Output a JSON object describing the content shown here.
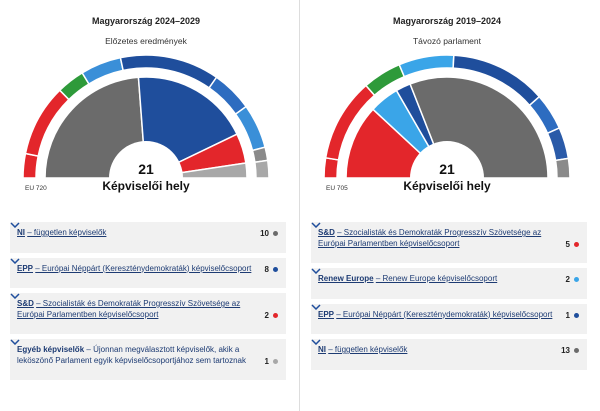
{
  "chart_data": [
    {
      "type": "parliament",
      "title": "Magyarország 2024–2029",
      "subtitle": "Előzetes eredmények",
      "total": 21,
      "total_label": "Képviselői hely",
      "eu_label": "EU 720",
      "categories": [
        "NI",
        "EPP",
        "S&D",
        "Egyéb képviselők"
      ],
      "descriptions": [
        "– független képviselők",
        "– Európai Néppárt (Kereszténydemokraták) képviselőcsoport",
        "– Szocialisták és Demokraták Progresszív Szövetsége az Európai Parlamentben képviselőcsoport",
        "– Újonnan megválasztott képviselők, akik a leköszönő Parlament egyik képviselőcsoportjához sem tartoznak"
      ],
      "values": [
        10,
        8,
        2,
        1
      ],
      "colors": [
        "#6b6b6b",
        "#1f4e9c",
        "#e3262b",
        "#a8a8a8"
      ],
      "underlined": [
        true,
        true,
        true,
        false
      ],
      "eu_series": {
        "values": [
          46,
          136,
          53,
          77,
          188,
          78,
          84,
          25,
          33
        ],
        "colors": [
          "#e3262b",
          "#e3262b",
          "#2e9a3a",
          "#3a8fd8",
          "#1f4e9c",
          "#2d6cc0",
          "#3a8fd8",
          "#8a8a8a",
          "#a8a8a8"
        ]
      }
    },
    {
      "type": "parliament",
      "title": "Magyarország 2019–2024",
      "subtitle": "Távozó parlament",
      "total": 21,
      "total_label": "Képviselői hely",
      "eu_label": "EU 705",
      "categories": [
        "S&D",
        "Renew Europe",
        "EPP",
        "NI"
      ],
      "descriptions": [
        "– Szocialisták és Demokraták Progresszív Szövetsége az Európai Parlamentben képviselőcsoport",
        "– Renew Europe képviselőcsoport",
        "– Európai Néppárt (Kereszténydemokraták) képviselőcsoport",
        "– független képviselők"
      ],
      "values": [
        5,
        2,
        1,
        13
      ],
      "colors": [
        "#e3262b",
        "#3aa5e8",
        "#1f4e9c",
        "#6b6b6b"
      ],
      "underlined": [
        true,
        true,
        true,
        true
      ],
      "eu_series": {
        "values": [
          37,
          154,
          72,
          102,
          178,
          68,
          58,
          36
        ],
        "colors": [
          "#e3262b",
          "#e3262b",
          "#2e9a3a",
          "#3aa5e8",
          "#1f4e9c",
          "#2d6cc0",
          "#2a5aa8",
          "#8a8a8a"
        ]
      }
    }
  ]
}
